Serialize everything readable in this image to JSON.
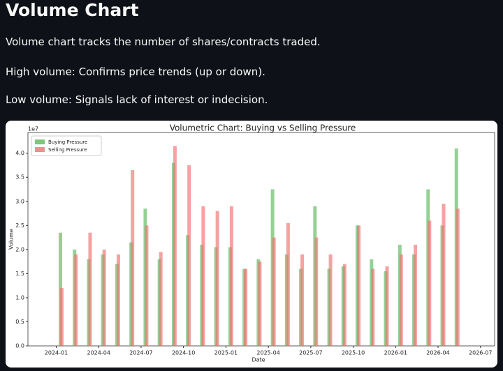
{
  "header": {
    "title": "Volume Chart"
  },
  "paragraphs": [
    "Volume chart tracks the number of shares/contracts traded.",
    "High volume: Confirms price trends (up or down).",
    "Low volume: Signals lack of interest or indecision."
  ],
  "chart_data": {
    "type": "bar",
    "title": "Volumetric Chart: Buying vs Selling Pressure",
    "x_label": "Date",
    "y_label": "Volume",
    "y_offset_label": "1e7",
    "x": [
      "2024-01",
      "2024-02",
      "2024-03",
      "2024-04",
      "2024-05",
      "2024-06",
      "2024-07",
      "2024-08",
      "2024-09",
      "2024-10",
      "2024-11",
      "2024-12",
      "2025-01",
      "2025-02",
      "2025-03",
      "2025-04",
      "2025-05",
      "2025-06",
      "2025-07",
      "2025-08",
      "2025-09",
      "2025-10",
      "2025-11",
      "2025-12",
      "2026-01",
      "2026-02",
      "2026-03",
      "2026-04",
      "2026-05"
    ],
    "series": [
      {
        "name": "Buying Pressure",
        "color": "#5cb85c",
        "values": [
          2.35,
          2.0,
          1.8,
          1.9,
          1.7,
          2.15,
          2.85,
          1.8,
          3.8,
          2.3,
          2.1,
          2.05,
          2.05,
          1.6,
          1.8,
          3.25,
          1.9,
          1.6,
          2.9,
          1.6,
          1.65,
          2.5,
          1.8,
          1.55,
          2.1,
          1.9,
          3.25,
          2.5,
          4.1
        ]
      },
      {
        "name": "Selling Pressure",
        "color": "#f07070",
        "values": [
          1.2,
          1.9,
          2.35,
          2.0,
          1.9,
          3.65,
          2.5,
          1.95,
          4.15,
          3.75,
          2.9,
          2.8,
          2.9,
          1.6,
          1.75,
          2.25,
          2.55,
          1.9,
          2.25,
          1.9,
          1.7,
          2.5,
          1.6,
          1.65,
          1.9,
          2.1,
          2.6,
          2.95,
          2.85
        ]
      }
    ],
    "xlim": [
      "2023-11",
      "2026-08"
    ],
    "xticks": [
      "2024-01",
      "2024-04",
      "2024-07",
      "2024-10",
      "2025-01",
      "2025-04",
      "2025-07",
      "2025-10",
      "2026-01",
      "2026-04",
      "2026-07"
    ],
    "ylim": [
      0,
      4.43
    ],
    "yticks": [
      {
        "value": 0,
        "label": "0.0"
      },
      {
        "value": 0.5,
        "label": "0.5"
      },
      {
        "value": 1,
        "label": "1.0"
      },
      {
        "value": 1.5,
        "label": "1.5"
      },
      {
        "value": 2,
        "label": "2.0"
      },
      {
        "value": 2.5,
        "label": "2.5"
      },
      {
        "value": 3,
        "label": "3.0"
      },
      {
        "value": 3.5,
        "label": "3.5"
      },
      {
        "value": 4,
        "label": "4.0"
      }
    ],
    "legend": "upper left"
  }
}
